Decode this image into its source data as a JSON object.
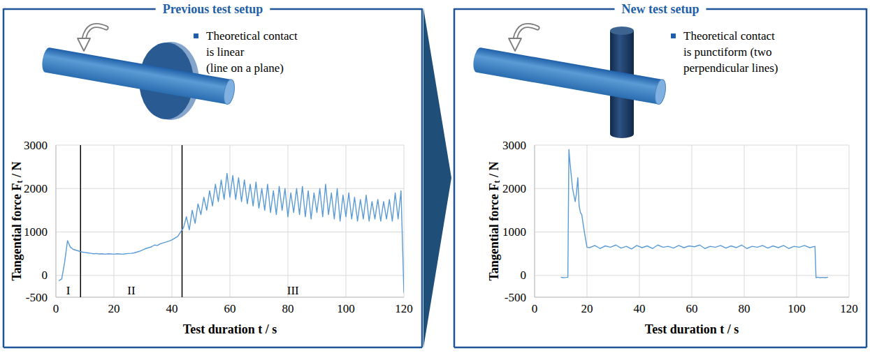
{
  "panels": [
    {
      "title": "Previous test setup",
      "bullet_lines": [
        "Theoretical contact",
        "is linear",
        "(line on a plane)"
      ]
    },
    {
      "title": "New test setup",
      "bullet_lines": [
        "Theoretical contact",
        "is punctiform (two",
        "perpendicular lines)"
      ]
    }
  ],
  "chart_data": [
    {
      "type": "line",
      "xlabel": "Test duration t / s",
      "ylabel": "Tangential force Ft / N",
      "xlim": [
        0,
        120
      ],
      "ylim": [
        -500,
        3000
      ],
      "xticks": [
        0,
        20,
        40,
        60,
        80,
        100,
        120
      ],
      "yticks": [
        -500,
        0,
        1000,
        2000,
        3000
      ],
      "grid": true,
      "color": "#5b9bd5",
      "phase_boundaries": [
        8.5,
        43.5
      ],
      "phase_labels": [
        "I",
        "II",
        "III"
      ],
      "x": [
        1,
        2,
        3,
        4,
        5,
        6,
        7,
        8,
        9,
        10,
        11,
        12,
        13,
        14,
        15,
        16,
        17,
        18,
        19,
        20,
        21,
        22,
        23,
        24,
        25,
        26,
        27,
        28,
        29,
        30,
        31,
        32,
        33,
        34,
        35,
        36,
        37,
        38,
        39,
        40,
        41,
        42,
        43,
        44,
        45,
        46,
        47,
        48,
        49,
        50,
        51,
        52,
        53,
        54,
        55,
        56,
        57,
        58,
        59,
        60,
        61,
        62,
        63,
        64,
        65,
        66,
        67,
        68,
        69,
        70,
        71,
        72,
        73,
        74,
        75,
        76,
        77,
        78,
        79,
        80,
        81,
        82,
        83,
        84,
        85,
        86,
        87,
        88,
        89,
        90,
        91,
        92,
        93,
        94,
        95,
        96,
        97,
        98,
        99,
        100,
        101,
        102,
        103,
        104,
        105,
        106,
        107,
        108,
        109,
        110,
        111,
        112,
        113,
        114,
        115,
        116,
        117,
        118,
        119,
        120
      ],
      "values": [
        -120,
        -80,
        300,
        800,
        650,
        600,
        580,
        560,
        540,
        530,
        520,
        510,
        500,
        505,
        495,
        500,
        490,
        500,
        495,
        490,
        500,
        495,
        490,
        500,
        505,
        510,
        520,
        540,
        560,
        590,
        620,
        640,
        660,
        700,
        690,
        730,
        750,
        770,
        790,
        820,
        860,
        900,
        1000,
        1100,
        1350,
        1050,
        1500,
        1200,
        1650,
        1400,
        1800,
        1500,
        1950,
        1600,
        2100,
        1700,
        2200,
        1750,
        2350,
        1800,
        2300,
        1750,
        2250,
        1700,
        2200,
        1650,
        2100,
        1600,
        2150,
        1550,
        2000,
        1500,
        2100,
        1450,
        1950,
        1400,
        2050,
        1500,
        2000,
        1350,
        1900,
        1450,
        2000,
        1400,
        2050,
        1350,
        1950,
        1300,
        1900,
        1450,
        2000,
        1350,
        2100,
        1400,
        1900,
        1300,
        2000,
        1250,
        1850,
        1350,
        1900,
        1300,
        1800,
        1250,
        1750,
        1300,
        1850,
        1250,
        1700,
        1300,
        1750,
        1250,
        1700,
        1300,
        1750,
        1250,
        1900,
        1300,
        1950,
        -400
      ]
    },
    {
      "type": "line",
      "xlabel": "Test duration t / s",
      "ylabel": "Tangential force Ft / N",
      "xlim": [
        0,
        120
      ],
      "ylim": [
        -500,
        3000
      ],
      "xticks": [
        0,
        20,
        40,
        60,
        80,
        100,
        120
      ],
      "yticks": [
        -500,
        0,
        1000,
        2000,
        3000
      ],
      "grid": true,
      "color": "#5b9bd5",
      "x": [
        10,
        11,
        12,
        12.7,
        13.1,
        13.5,
        14,
        14.5,
        15,
        15.5,
        16,
        16.5,
        17,
        17.5,
        18,
        19,
        20,
        21,
        23,
        25,
        27,
        29,
        31,
        33,
        35,
        37,
        39,
        41,
        43,
        45,
        47,
        49,
        51,
        53,
        55,
        57,
        59,
        61,
        63,
        65,
        67,
        69,
        71,
        73,
        75,
        77,
        79,
        81,
        83,
        85,
        87,
        89,
        91,
        93,
        95,
        97,
        99,
        101,
        103,
        105,
        107,
        107.4,
        108,
        109,
        110,
        111,
        112
      ],
      "values": [
        -40,
        -50,
        -45,
        -40,
        2900,
        2600,
        2300,
        2000,
        1850,
        1700,
        1900,
        2250,
        1600,
        1450,
        1400,
        1000,
        650,
        640,
        690,
        620,
        680,
        650,
        700,
        630,
        670,
        610,
        690,
        640,
        680,
        620,
        700,
        650,
        670,
        630,
        690,
        640,
        680,
        660,
        700,
        620,
        670,
        650,
        690,
        630,
        680,
        640,
        700,
        620,
        670,
        650,
        690,
        630,
        680,
        640,
        690,
        620,
        670,
        650,
        690,
        640,
        670,
        -50,
        -40,
        -50,
        -45,
        -50,
        -40
      ]
    }
  ]
}
